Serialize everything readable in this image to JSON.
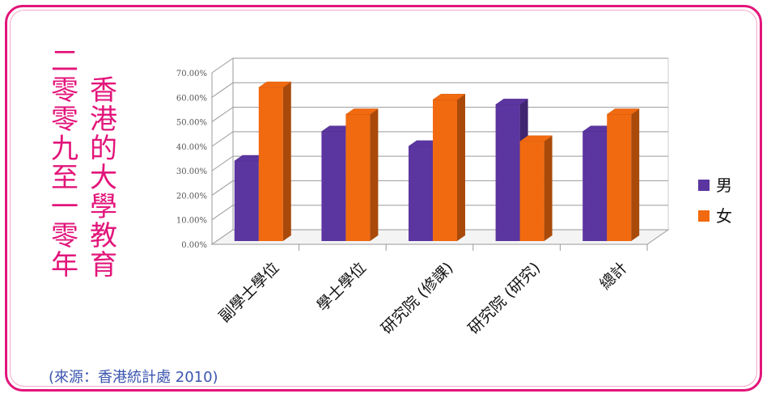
{
  "title": {
    "line1": "香港的大學教育",
    "line2": "二零零九至一零年"
  },
  "source": "(來源：香港統計處 2010)",
  "colors": {
    "male": "#5b35a0",
    "female": "#f26a10",
    "accent": "#e2157a"
  },
  "chart_data": {
    "type": "bar",
    "categories": [
      "副學士學位",
      "學士學位",
      "研究院 (修課)",
      "研究院 (研究)",
      "總計"
    ],
    "series": [
      {
        "name": "男",
        "values": [
          34,
          46,
          40,
          57,
          46
        ]
      },
      {
        "name": "女",
        "values": [
          64,
          53,
          59,
          42,
          53
        ]
      }
    ],
    "ylim": [
      0,
      70
    ],
    "yticks": [
      "0.00%",
      "10.00%",
      "20.00%",
      "30.00%",
      "40.00%",
      "50.00%",
      "60.00%",
      "70.00%"
    ],
    "grid": true,
    "legend": "right",
    "style": "3d-column"
  }
}
